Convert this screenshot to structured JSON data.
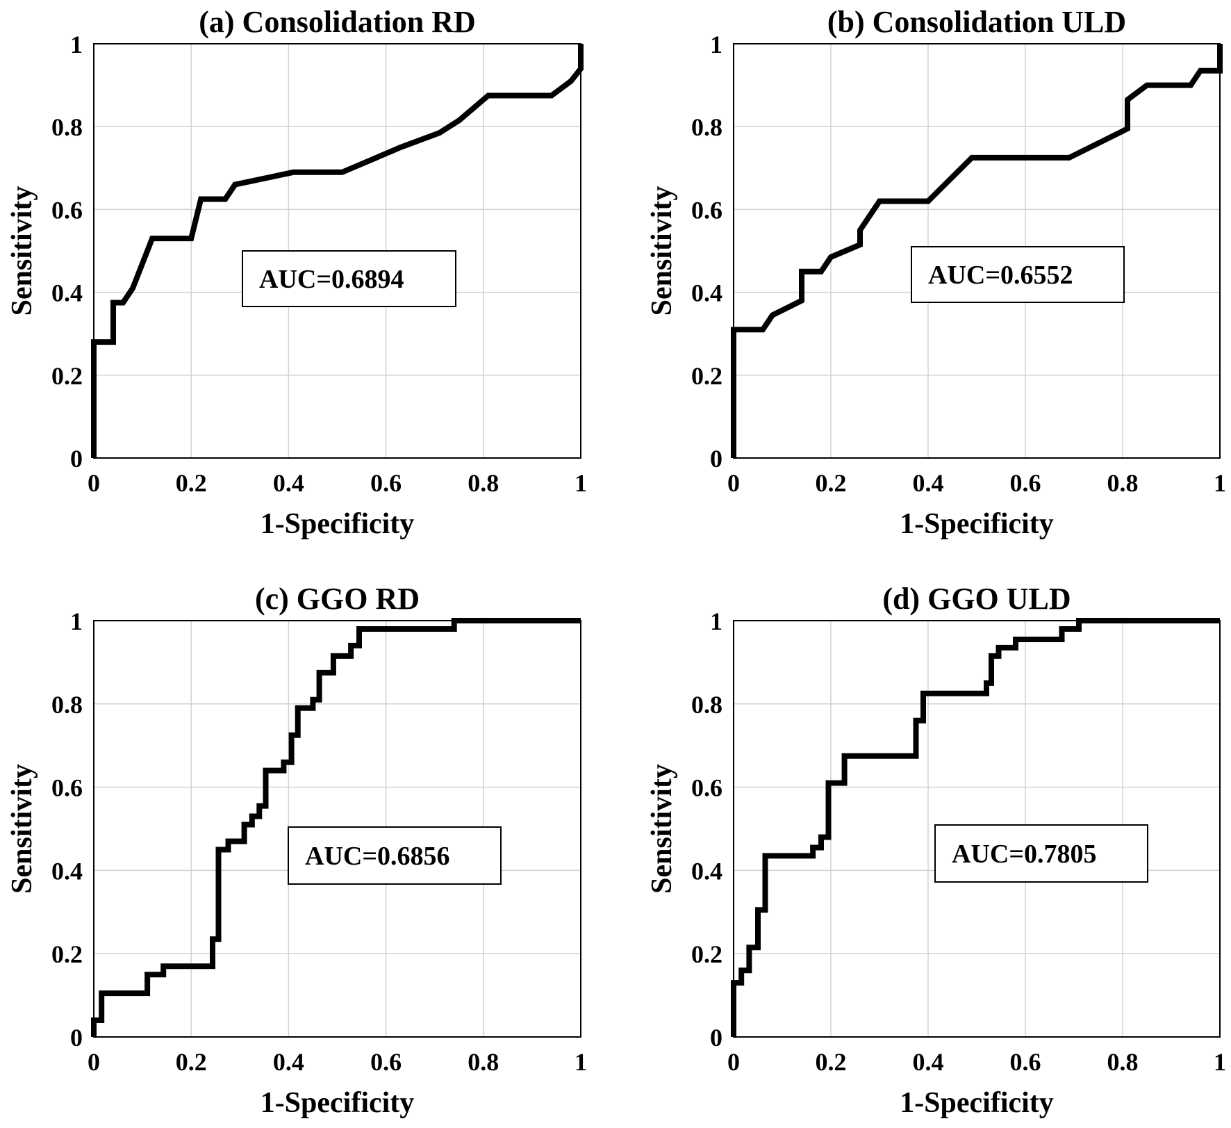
{
  "chart_data": [
    {
      "type": "line",
      "title": "(a) Consolidation RD",
      "xlabel": "1-Specificity",
      "ylabel": "Sensitivity",
      "xlim": [
        0,
        1
      ],
      "ylim": [
        0,
        1
      ],
      "xticks": [
        "0",
        "0.2",
        "0.4",
        "0.6",
        "0.8",
        "1"
      ],
      "yticks": [
        "0",
        "0.2",
        "0.4",
        "0.6",
        "0.8",
        "1"
      ],
      "grid": true,
      "annotation": "AUC=0.6894",
      "x": [
        0,
        0,
        0.04,
        0.04,
        0.06,
        0.08,
        0.12,
        0.2,
        0.22,
        0.22,
        0.27,
        0.29,
        0.35,
        0.41,
        0.51,
        0.57,
        0.63,
        0.71,
        0.75,
        0.81,
        0.94,
        0.98,
        1,
        1
      ],
      "y": [
        0,
        0.28,
        0.28,
        0.375,
        0.375,
        0.41,
        0.53,
        0.53,
        0.625,
        0.625,
        0.625,
        0.66,
        0.675,
        0.69,
        0.69,
        0.72,
        0.75,
        0.785,
        0.815,
        0.875,
        0.875,
        0.91,
        0.94,
        1
      ]
    },
    {
      "type": "line",
      "title": "(b) Consolidation ULD",
      "xlabel": "1-Specificity",
      "ylabel": "Sensitivity",
      "xlim": [
        0,
        1
      ],
      "ylim": [
        0,
        1
      ],
      "xticks": [
        "0",
        "0.2",
        "0.4",
        "0.6",
        "0.8",
        "1"
      ],
      "yticks": [
        "0",
        "0.2",
        "0.4",
        "0.6",
        "0.8",
        "1"
      ],
      "grid": true,
      "annotation": "AUC=0.6552",
      "x": [
        0,
        0,
        0.06,
        0.08,
        0.14,
        0.14,
        0.18,
        0.2,
        0.26,
        0.26,
        0.3,
        0.4,
        0.43,
        0.49,
        0.69,
        0.81,
        0.81,
        0.85,
        0.94,
        0.96,
        1,
        1
      ],
      "y": [
        0,
        0.31,
        0.31,
        0.345,
        0.38,
        0.45,
        0.45,
        0.485,
        0.515,
        0.55,
        0.62,
        0.62,
        0.655,
        0.725,
        0.725,
        0.795,
        0.865,
        0.9,
        0.9,
        0.935,
        0.935,
        1
      ]
    },
    {
      "type": "line",
      "title": "(c) GGO RD",
      "xlabel": "1-Specificity",
      "ylabel": "Sensitivity",
      "xlim": [
        0,
        1
      ],
      "ylim": [
        0,
        1
      ],
      "xticks": [
        "0",
        "0.2",
        "0.4",
        "0.6",
        "0.8",
        "1"
      ],
      "yticks": [
        "0",
        "0.2",
        "0.4",
        "0.6",
        "0.8",
        "1"
      ],
      "grid": true,
      "annotation": "AUC=0.6856",
      "x": [
        0,
        0,
        0.016,
        0.016,
        0.11,
        0.11,
        0.143,
        0.143,
        0.244,
        0.244,
        0.256,
        0.256,
        0.276,
        0.276,
        0.309,
        0.309,
        0.325,
        0.325,
        0.34,
        0.34,
        0.353,
        0.353,
        0.39,
        0.39,
        0.406,
        0.406,
        0.419,
        0.419,
        0.45,
        0.45,
        0.463,
        0.463,
        0.492,
        0.492,
        0.528,
        0.528,
        0.545,
        0.545,
        0.74,
        0.74,
        1
      ],
      "y": [
        0,
        0.04,
        0.04,
        0.105,
        0.105,
        0.15,
        0.15,
        0.17,
        0.17,
        0.235,
        0.235,
        0.45,
        0.45,
        0.47,
        0.47,
        0.51,
        0.51,
        0.53,
        0.53,
        0.555,
        0.555,
        0.64,
        0.64,
        0.66,
        0.66,
        0.725,
        0.725,
        0.79,
        0.79,
        0.81,
        0.81,
        0.875,
        0.875,
        0.915,
        0.915,
        0.94,
        0.94,
        0.98,
        0.98,
        1,
        1
      ]
    },
    {
      "type": "line",
      "title": "(d) GGO ULD",
      "xlabel": "1-Specificity",
      "ylabel": "Sensitivity",
      "xlim": [
        0,
        1
      ],
      "ylim": [
        0,
        1
      ],
      "xticks": [
        "0",
        "0.2",
        "0.4",
        "0.6",
        "0.8",
        "1"
      ],
      "yticks": [
        "0",
        "0.2",
        "0.4",
        "0.6",
        "0.8",
        "1"
      ],
      "grid": true,
      "annotation": "AUC=0.7805",
      "x": [
        0,
        0,
        0.016,
        0.016,
        0.032,
        0.032,
        0.05,
        0.05,
        0.065,
        0.065,
        0.163,
        0.163,
        0.18,
        0.18,
        0.195,
        0.195,
        0.228,
        0.228,
        0.375,
        0.375,
        0.39,
        0.39,
        0.52,
        0.52,
        0.53,
        0.53,
        0.545,
        0.545,
        0.58,
        0.58,
        0.675,
        0.675,
        0.71,
        0.71,
        1
      ],
      "y": [
        0,
        0.13,
        0.13,
        0.16,
        0.16,
        0.215,
        0.215,
        0.305,
        0.305,
        0.435,
        0.435,
        0.455,
        0.455,
        0.48,
        0.48,
        0.61,
        0.61,
        0.675,
        0.675,
        0.76,
        0.76,
        0.825,
        0.825,
        0.85,
        0.85,
        0.915,
        0.915,
        0.935,
        0.935,
        0.955,
        0.955,
        0.98,
        0.98,
        1,
        1
      ]
    }
  ]
}
